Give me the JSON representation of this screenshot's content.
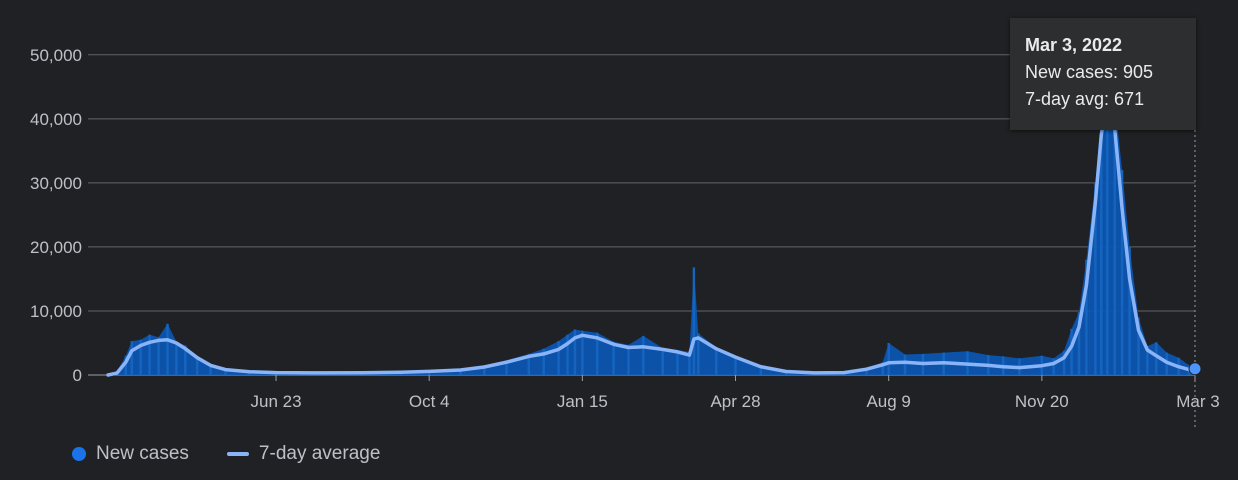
{
  "chart_data": {
    "type": "bar",
    "yticks": [
      {
        "value": 0,
        "label": "0"
      },
      {
        "value": 10000,
        "label": "10,000"
      },
      {
        "value": 20000,
        "label": "20,000"
      },
      {
        "value": 30000,
        "label": "30,000"
      },
      {
        "value": 40000,
        "label": "40,000"
      },
      {
        "value": 50000,
        "label": "50,000"
      }
    ],
    "ylim": [
      0,
      52000
    ],
    "xticks": [
      {
        "date": "2020-06-23",
        "label": "Jun 23"
      },
      {
        "date": "2020-10-04",
        "label": "Oct 4"
      },
      {
        "date": "2021-01-15",
        "label": "Jan 15"
      },
      {
        "date": "2021-04-28",
        "label": "Apr 28"
      },
      {
        "date": "2021-08-09",
        "label": "Aug 9"
      },
      {
        "date": "2021-11-20",
        "label": "Nov 20"
      },
      {
        "date": "2022-03-03",
        "label": "Mar 3"
      }
    ],
    "xlim": [
      "2020-03-02",
      "2022-03-03"
    ],
    "grid": true,
    "legend_position": "bottom-left",
    "series": [
      {
        "name": "New cases",
        "style": "bars",
        "color": "#0b57b5",
        "points": [
          [
            "2020-03-02",
            0
          ],
          [
            "2020-03-08",
            600
          ],
          [
            "2020-03-14",
            3000
          ],
          [
            "2020-03-18",
            5300
          ],
          [
            "2020-03-24",
            5500
          ],
          [
            "2020-03-30",
            6300
          ],
          [
            "2020-04-05",
            5900
          ],
          [
            "2020-04-11",
            8000
          ],
          [
            "2020-04-17",
            5200
          ],
          [
            "2020-04-23",
            4600
          ],
          [
            "2020-05-01",
            2600
          ],
          [
            "2020-05-10",
            1400
          ],
          [
            "2020-05-20",
            800
          ],
          [
            "2020-06-05",
            550
          ],
          [
            "2020-06-23",
            420
          ],
          [
            "2020-07-20",
            380
          ],
          [
            "2020-08-20",
            420
          ],
          [
            "2020-09-15",
            480
          ],
          [
            "2020-10-04",
            650
          ],
          [
            "2020-10-25",
            900
          ],
          [
            "2020-11-10",
            1500
          ],
          [
            "2020-11-25",
            2300
          ],
          [
            "2020-12-10",
            3300
          ],
          [
            "2020-12-20",
            4100
          ],
          [
            "2020-12-30",
            5300
          ],
          [
            "2021-01-05",
            6300
          ],
          [
            "2021-01-10",
            7100
          ],
          [
            "2021-01-15",
            6900
          ],
          [
            "2021-01-25",
            6600
          ],
          [
            "2021-02-05",
            5200
          ],
          [
            "2021-02-15",
            4700
          ],
          [
            "2021-02-25",
            6100
          ],
          [
            "2021-03-10",
            4200
          ],
          [
            "2021-03-20",
            3900
          ],
          [
            "2021-03-28",
            3600
          ],
          [
            "2021-03-31",
            16800
          ],
          [
            "2021-04-03",
            6500
          ],
          [
            "2021-04-15",
            4300
          ],
          [
            "2021-04-28",
            3000
          ],
          [
            "2021-05-15",
            1500
          ],
          [
            "2021-06-01",
            700
          ],
          [
            "2021-06-20",
            450
          ],
          [
            "2021-07-10",
            500
          ],
          [
            "2021-07-25",
            1100
          ],
          [
            "2021-08-05",
            2000
          ],
          [
            "2021-08-09",
            5000
          ],
          [
            "2021-08-20",
            3200
          ],
          [
            "2021-09-01",
            3300
          ],
          [
            "2021-09-15",
            3500
          ],
          [
            "2021-10-01",
            3700
          ],
          [
            "2021-10-15",
            3100
          ],
          [
            "2021-10-25",
            2900
          ],
          [
            "2021-11-05",
            2600
          ],
          [
            "2021-11-20",
            3000
          ],
          [
            "2021-11-28",
            2600
          ],
          [
            "2021-12-05",
            3800
          ],
          [
            "2021-12-10",
            7200
          ],
          [
            "2021-12-15",
            9800
          ],
          [
            "2021-12-20",
            18000
          ],
          [
            "2021-12-26",
            30000
          ],
          [
            "2021-12-30",
            40500
          ],
          [
            "2022-01-03",
            47000
          ],
          [
            "2022-01-08",
            43000
          ],
          [
            "2022-01-13",
            32000
          ],
          [
            "2022-01-18",
            20000
          ],
          [
            "2022-01-24",
            9000
          ],
          [
            "2022-01-30",
            4500
          ],
          [
            "2022-02-05",
            5100
          ],
          [
            "2022-02-12",
            3500
          ],
          [
            "2022-02-20",
            2700
          ],
          [
            "2022-02-27",
            1500
          ],
          [
            "2022-03-03",
            905
          ]
        ]
      },
      {
        "name": "7-day average",
        "style": "line",
        "color": "#8ab4f8",
        "points": [
          [
            "2020-03-02",
            0
          ],
          [
            "2020-03-08",
            300
          ],
          [
            "2020-03-14",
            2000
          ],
          [
            "2020-03-18",
            3800
          ],
          [
            "2020-03-24",
            4600
          ],
          [
            "2020-03-30",
            5100
          ],
          [
            "2020-04-05",
            5400
          ],
          [
            "2020-04-11",
            5500
          ],
          [
            "2020-04-17",
            5000
          ],
          [
            "2020-04-23",
            4100
          ],
          [
            "2020-05-01",
            2700
          ],
          [
            "2020-05-10",
            1500
          ],
          [
            "2020-05-20",
            850
          ],
          [
            "2020-06-05",
            520
          ],
          [
            "2020-06-23",
            380
          ],
          [
            "2020-07-20",
            330
          ],
          [
            "2020-08-20",
            360
          ],
          [
            "2020-09-15",
            420
          ],
          [
            "2020-10-04",
            560
          ],
          [
            "2020-10-25",
            780
          ],
          [
            "2020-11-10",
            1250
          ],
          [
            "2020-11-25",
            2000
          ],
          [
            "2020-12-10",
            2900
          ],
          [
            "2020-12-20",
            3300
          ],
          [
            "2020-12-30",
            4000
          ],
          [
            "2021-01-05",
            4900
          ],
          [
            "2021-01-10",
            5800
          ],
          [
            "2021-01-15",
            6200
          ],
          [
            "2021-01-25",
            5800
          ],
          [
            "2021-02-05",
            4800
          ],
          [
            "2021-02-15",
            4300
          ],
          [
            "2021-02-25",
            4400
          ],
          [
            "2021-03-10",
            4000
          ],
          [
            "2021-03-20",
            3600
          ],
          [
            "2021-03-28",
            3100
          ],
          [
            "2021-03-31",
            5600
          ],
          [
            "2021-04-03",
            5800
          ],
          [
            "2021-04-15",
            4100
          ],
          [
            "2021-04-28",
            2800
          ],
          [
            "2021-05-15",
            1300
          ],
          [
            "2021-06-01",
            550
          ],
          [
            "2021-06-20",
            330
          ],
          [
            "2021-07-10",
            380
          ],
          [
            "2021-07-25",
            900
          ],
          [
            "2021-08-05",
            1600
          ],
          [
            "2021-08-09",
            1900
          ],
          [
            "2021-08-20",
            2000
          ],
          [
            "2021-09-01",
            1800
          ],
          [
            "2021-09-15",
            1900
          ],
          [
            "2021-10-01",
            1700
          ],
          [
            "2021-10-15",
            1500
          ],
          [
            "2021-10-25",
            1300
          ],
          [
            "2021-11-05",
            1150
          ],
          [
            "2021-11-20",
            1450
          ],
          [
            "2021-11-28",
            1800
          ],
          [
            "2021-12-05",
            2700
          ],
          [
            "2021-12-10",
            4500
          ],
          [
            "2021-12-15",
            7500
          ],
          [
            "2021-12-20",
            14000
          ],
          [
            "2021-12-26",
            27000
          ],
          [
            "2021-12-30",
            37500
          ],
          [
            "2022-01-03",
            43500
          ],
          [
            "2022-01-08",
            38500
          ],
          [
            "2022-01-13",
            26000
          ],
          [
            "2022-01-18",
            15000
          ],
          [
            "2022-01-24",
            7000
          ],
          [
            "2022-01-30",
            3900
          ],
          [
            "2022-02-05",
            3000
          ],
          [
            "2022-02-12",
            2000
          ],
          [
            "2022-02-20",
            1300
          ],
          [
            "2022-02-27",
            850
          ],
          [
            "2022-03-03",
            671
          ]
        ]
      }
    ],
    "tooltip": {
      "date": "Mar 3, 2022",
      "new_cases": "New cases: 905",
      "avg": "7-day avg: 671"
    },
    "legend": {
      "new_cases": "New cases",
      "avg": "7-day average"
    }
  }
}
